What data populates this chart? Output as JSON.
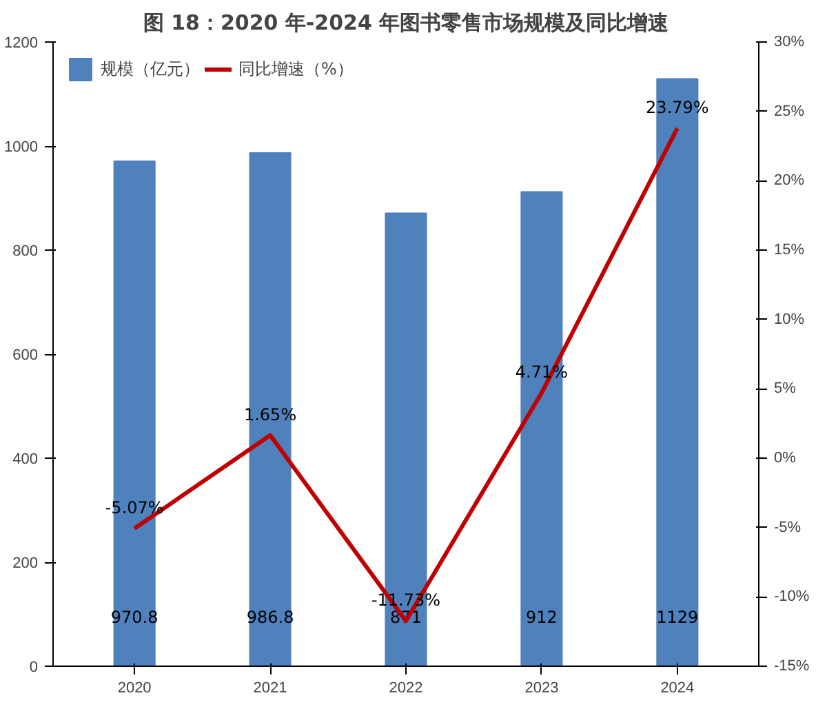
{
  "chart_data": {
    "type": "bar",
    "title": "图 18：2020 年-2024 年图书零售市场规模及同比增速",
    "categories": [
      "2020",
      "2021",
      "2022",
      "2023",
      "2024"
    ],
    "series": [
      {
        "name": "规模（亿元）",
        "color": "#4f81bd",
        "values": [
          970.8,
          986.8,
          871,
          912,
          1129
        ],
        "value_labels": [
          "970.8",
          "986.8",
          "871",
          "912",
          "1129"
        ]
      },
      {
        "name": "同比增速（%）",
        "type": "line",
        "axis": "y2",
        "color": "#c00000",
        "values": [
          -5.07,
          1.65,
          -11.73,
          4.71,
          23.79
        ],
        "value_labels": [
          "-5.07%",
          "1.65%",
          "-11.73%",
          "4.71%",
          "23.79%"
        ]
      }
    ],
    "ylim": [
      0,
      1200
    ],
    "yticks": [
      0,
      200,
      400,
      600,
      800,
      1000,
      1200
    ],
    "y2lim": [
      -15,
      30
    ],
    "y2ticks": [
      {
        "value": -15,
        "label": "-15%"
      },
      {
        "value": -10,
        "label": "-10%"
      },
      {
        "value": -5,
        "label": "-5%"
      },
      {
        "value": 0,
        "label": "0%"
      },
      {
        "value": 5,
        "label": "5%"
      },
      {
        "value": 10,
        "label": "10%"
      },
      {
        "value": 15,
        "label": "15%"
      },
      {
        "value": 20,
        "label": "20%"
      },
      {
        "value": 25,
        "label": "25%"
      },
      {
        "value": 30,
        "label": "30%"
      }
    ],
    "legend": "top left",
    "grid": false,
    "marker": "none",
    "line_style": "solid"
  }
}
